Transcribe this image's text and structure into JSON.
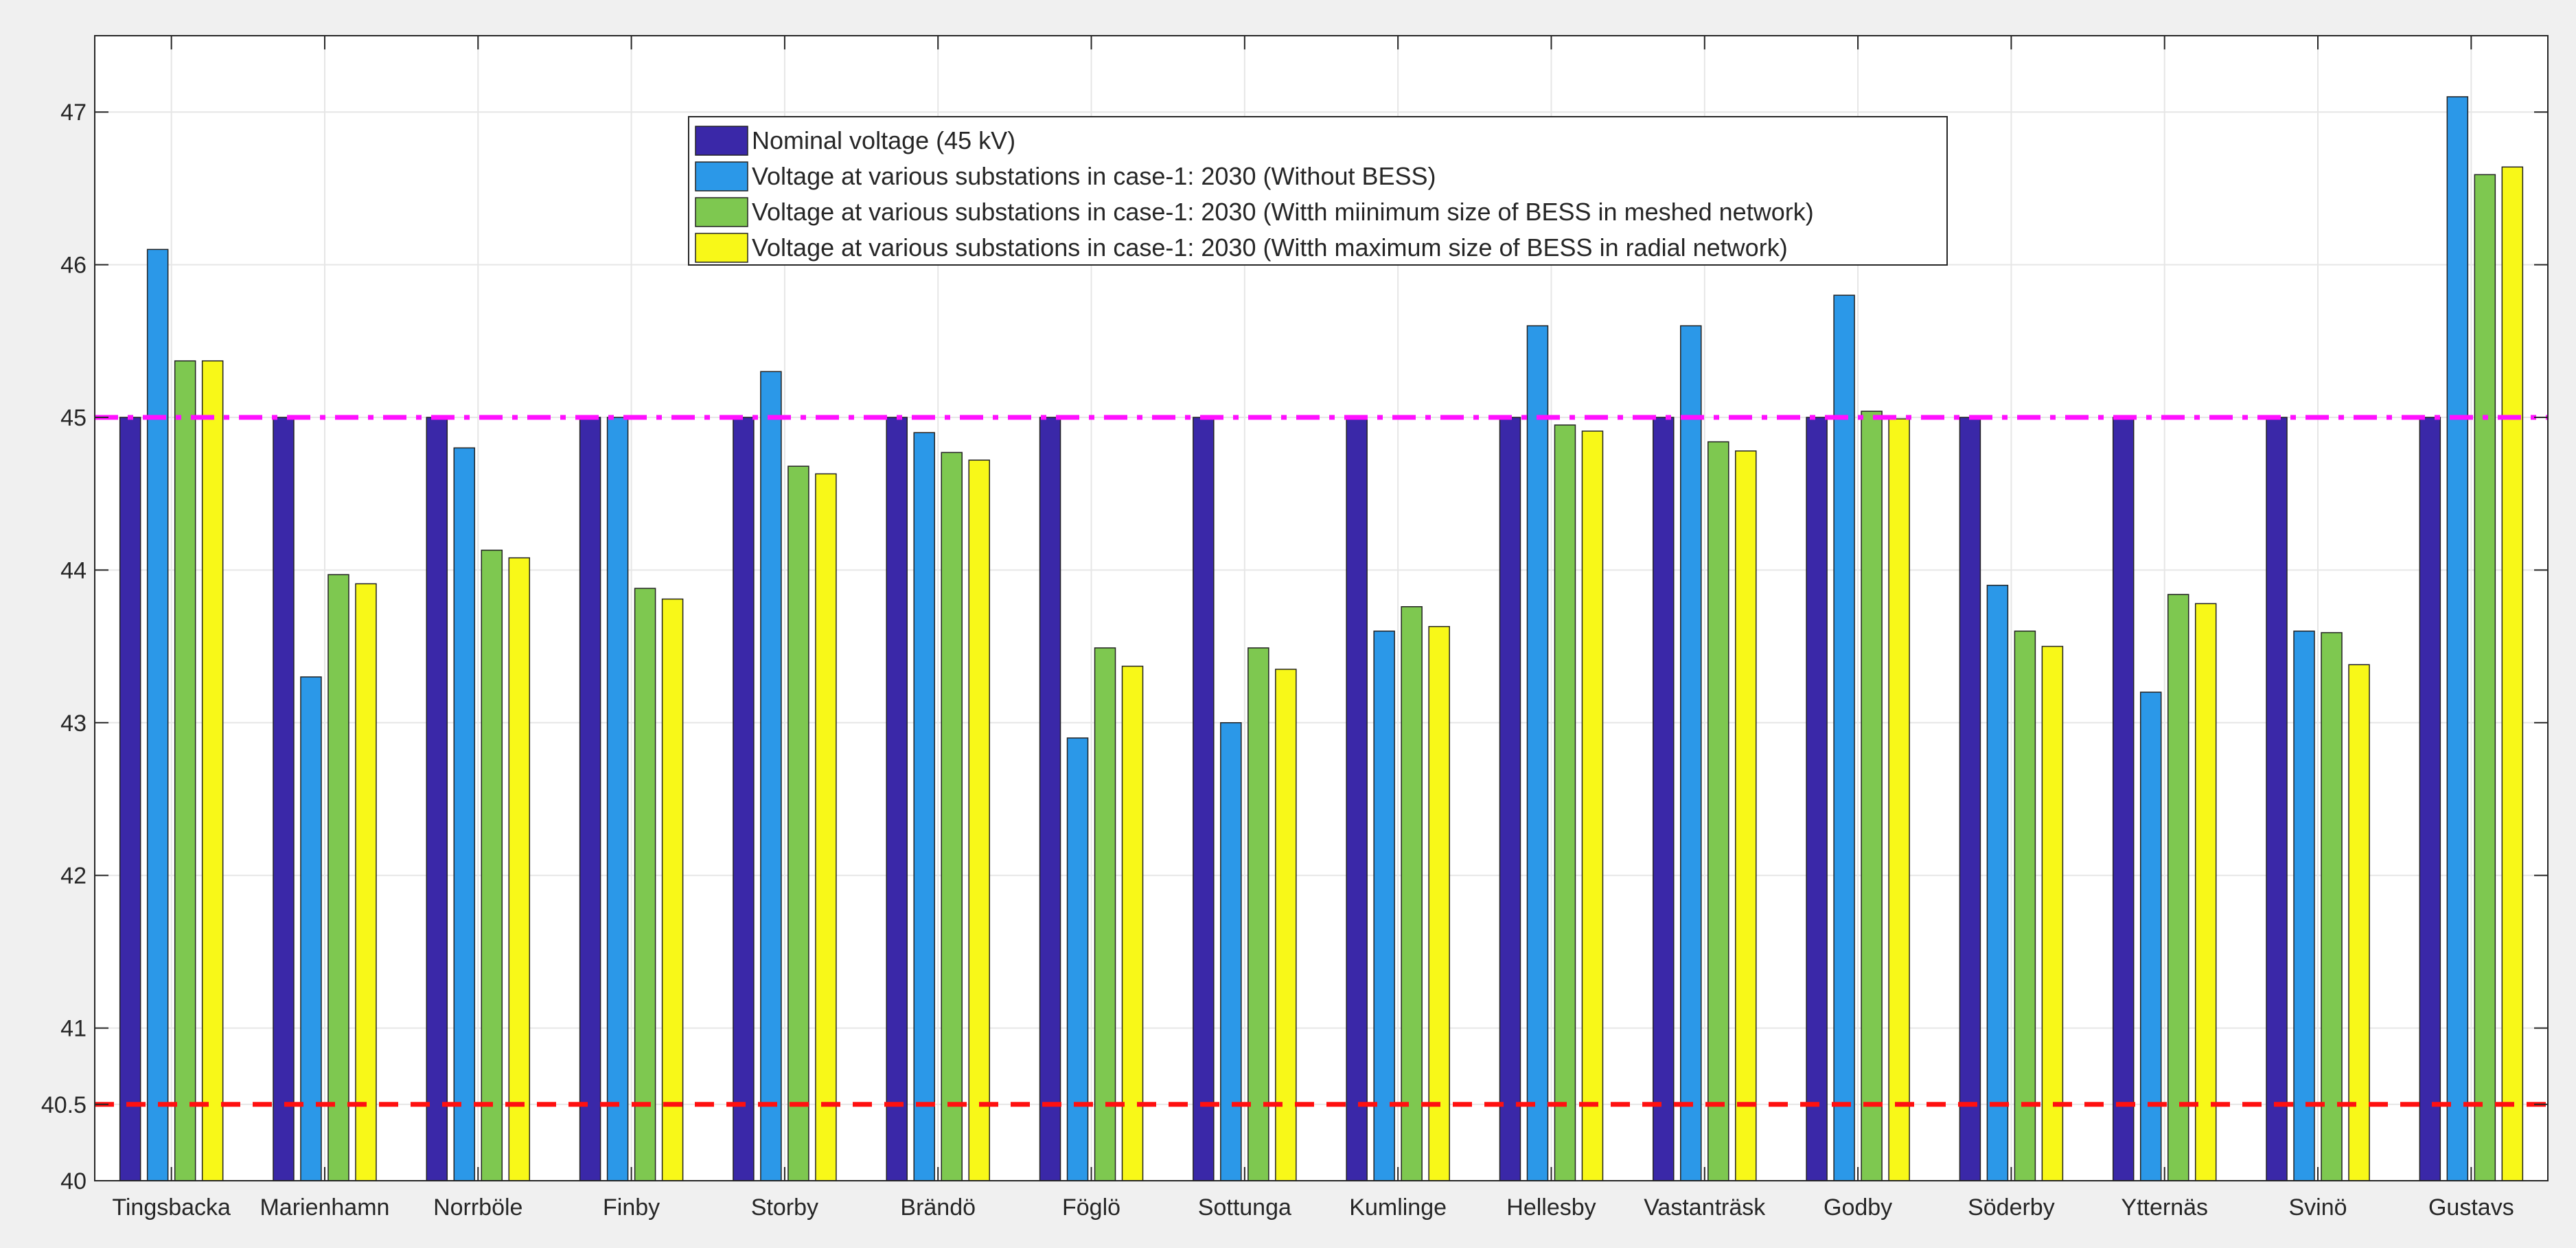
{
  "chart_data": {
    "type": "bar",
    "title": "",
    "xlabel": "",
    "ylabel": "",
    "ylim": [
      40,
      47.5
    ],
    "yticks": [
      40,
      40.5,
      41,
      42,
      43,
      44,
      45,
      46,
      47
    ],
    "grid": true,
    "legend_position": "top-center",
    "categories": [
      "Tingsbacka",
      "Marienhamn",
      "Norrböle",
      "Finby",
      "Storby",
      "Brändö",
      "Föglö",
      "Sottunga",
      "Kumlinge",
      "Hellesby",
      "Vastanträsk",
      "Godby",
      "Söderby",
      "Ytternäs",
      "Svinö",
      "Gustavs"
    ],
    "series": [
      {
        "name": "Nominal voltage (45 kV)",
        "color": "#3a28a8",
        "values": [
          45,
          45,
          45,
          45,
          45,
          45,
          45,
          45,
          45,
          45,
          45,
          45,
          45,
          45,
          45,
          45
        ]
      },
      {
        "name": "Voltage at various substations in case-1: 2030 (Without BESS)",
        "color": "#2b98e8",
        "values": [
          46.1,
          43.3,
          44.8,
          45.0,
          45.3,
          44.9,
          42.9,
          43.0,
          43.6,
          45.6,
          45.6,
          45.8,
          43.9,
          43.2,
          43.6,
          47.1
        ]
      },
      {
        "name": "Voltage at various substations in case-1: 2030 (Witth miinimum size of BESS in meshed network)",
        "color": "#7ec850",
        "values": [
          45.37,
          43.97,
          44.13,
          43.88,
          44.68,
          44.77,
          43.49,
          43.49,
          43.76,
          44.95,
          44.84,
          45.04,
          43.6,
          43.84,
          43.59,
          46.59
        ]
      },
      {
        "name": "Voltage at various substations in case-1: 2030 (Witth maximum size of BESS in radial network)",
        "color": "#f8f818",
        "values": [
          45.37,
          43.91,
          44.08,
          43.81,
          44.63,
          44.72,
          43.37,
          43.35,
          43.63,
          44.91,
          44.78,
          44.99,
          43.5,
          43.78,
          43.38,
          46.64
        ]
      }
    ],
    "reference_lines": [
      {
        "value": 45,
        "color": "#ff10ff",
        "style": "dash-dot"
      },
      {
        "value": 40.5,
        "color": "#ff1010",
        "style": "dashed"
      }
    ]
  }
}
